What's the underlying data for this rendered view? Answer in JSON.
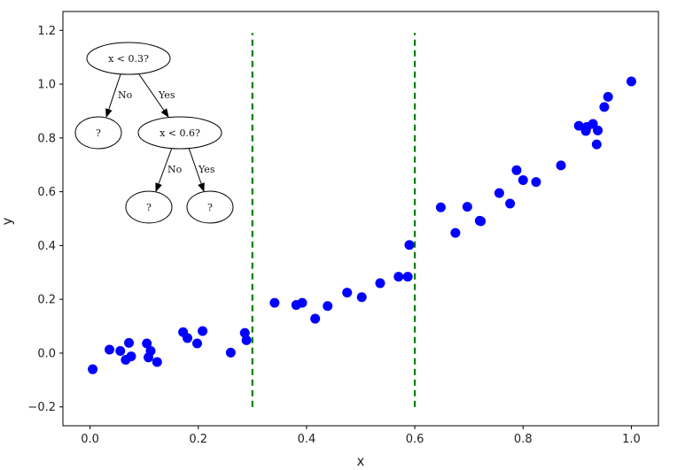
{
  "chart_data": {
    "type": "scatter",
    "xlabel": "x",
    "ylabel": "y",
    "xlim": [
      -0.05,
      1.05
    ],
    "ylim": [
      -0.27,
      1.27
    ],
    "xticks": [
      0.0,
      0.2,
      0.4,
      0.6,
      0.8,
      1.0
    ],
    "xtick_labels": [
      "0.0",
      "0.2",
      "0.4",
      "0.6",
      "0.8",
      "1.0"
    ],
    "yticks": [
      -0.2,
      0.0,
      0.2,
      0.4,
      0.6,
      0.8,
      1.0,
      1.2
    ],
    "ytick_labels": [
      "−0.2",
      "0.0",
      "0.2",
      "0.4",
      "0.6",
      "0.8",
      "1.0",
      "1.2"
    ],
    "grid": false,
    "point_color": "#0000ff",
    "split_color": "#008000",
    "points": [
      {
        "x": 0.005,
        "y": -0.06
      },
      {
        "x": 0.036,
        "y": 0.013
      },
      {
        "x": 0.056,
        "y": 0.008
      },
      {
        "x": 0.066,
        "y": -0.025
      },
      {
        "x": 0.072,
        "y": 0.038
      },
      {
        "x": 0.076,
        "y": -0.012
      },
      {
        "x": 0.105,
        "y": 0.036
      },
      {
        "x": 0.108,
        "y": -0.016
      },
      {
        "x": 0.112,
        "y": 0.008
      },
      {
        "x": 0.124,
        "y": -0.033
      },
      {
        "x": 0.172,
        "y": 0.078
      },
      {
        "x": 0.18,
        "y": 0.056
      },
      {
        "x": 0.198,
        "y": 0.036
      },
      {
        "x": 0.208,
        "y": 0.082
      },
      {
        "x": 0.26,
        "y": 0.002
      },
      {
        "x": 0.286,
        "y": 0.075
      },
      {
        "x": 0.289,
        "y": 0.048
      },
      {
        "x": 0.341,
        "y": 0.187
      },
      {
        "x": 0.381,
        "y": 0.179
      },
      {
        "x": 0.392,
        "y": 0.187
      },
      {
        "x": 0.416,
        "y": 0.128
      },
      {
        "x": 0.439,
        "y": 0.175
      },
      {
        "x": 0.475,
        "y": 0.225
      },
      {
        "x": 0.502,
        "y": 0.208
      },
      {
        "x": 0.536,
        "y": 0.26
      },
      {
        "x": 0.57,
        "y": 0.284
      },
      {
        "x": 0.587,
        "y": 0.284
      },
      {
        "x": 0.59,
        "y": 0.402
      },
      {
        "x": 0.648,
        "y": 0.542
      },
      {
        "x": 0.675,
        "y": 0.447
      },
      {
        "x": 0.697,
        "y": 0.544
      },
      {
        "x": 0.72,
        "y": 0.492
      },
      {
        "x": 0.722,
        "y": 0.49
      },
      {
        "x": 0.756,
        "y": 0.595
      },
      {
        "x": 0.776,
        "y": 0.556
      },
      {
        "x": 0.788,
        "y": 0.68
      },
      {
        "x": 0.8,
        "y": 0.643
      },
      {
        "x": 0.824,
        "y": 0.636
      },
      {
        "x": 0.87,
        "y": 0.698
      },
      {
        "x": 0.903,
        "y": 0.845
      },
      {
        "x": 0.916,
        "y": 0.826
      },
      {
        "x": 0.918,
        "y": 0.841
      },
      {
        "x": 0.929,
        "y": 0.852
      },
      {
        "x": 0.936,
        "y": 0.776
      },
      {
        "x": 0.938,
        "y": 0.828
      },
      {
        "x": 0.95,
        "y": 0.915
      },
      {
        "x": 0.957,
        "y": 0.953
      },
      {
        "x": 1.0,
        "y": 1.01
      }
    ],
    "splits": [
      {
        "x": 0.3,
        "y_from": -0.2,
        "y_to": 1.19
      },
      {
        "x": 0.6,
        "y_from": -0.2,
        "y_to": 1.19
      }
    ],
    "tree": {
      "root_label": "x < 0.3?",
      "root_no_edge": "No",
      "root_yes_edge": "Yes",
      "left_leaf": "?",
      "child_label": "x < 0.6?",
      "child_no_edge": "No",
      "child_yes_edge": "Yes",
      "child_left_leaf": "?",
      "child_right_leaf": "?"
    }
  }
}
